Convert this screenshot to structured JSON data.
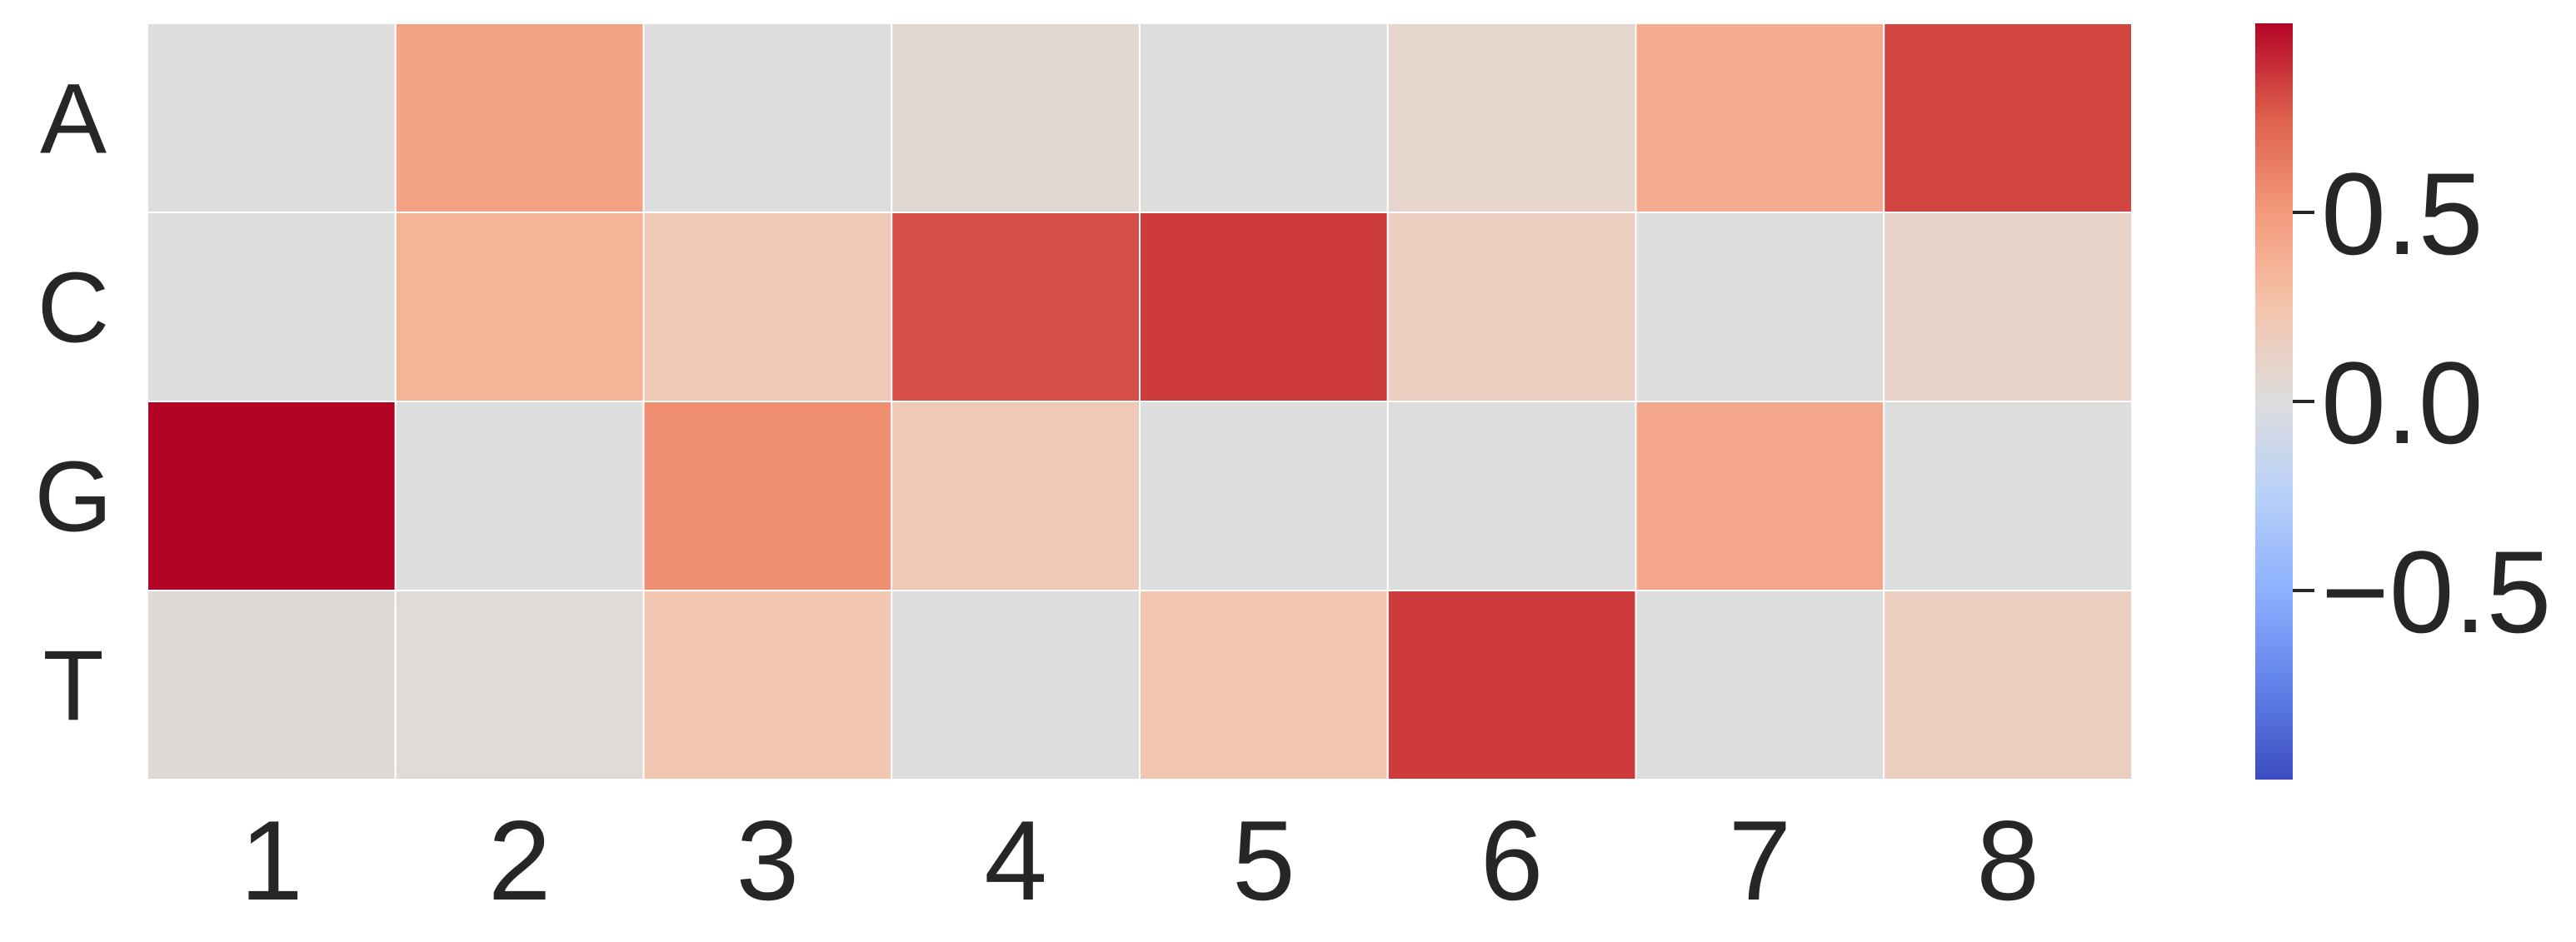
{
  "chart_data": {
    "type": "heatmap",
    "title": "",
    "xlabel": "",
    "ylabel": "",
    "x_categories": [
      "1",
      "2",
      "3",
      "4",
      "5",
      "6",
      "7",
      "8"
    ],
    "y_categories": [
      "A",
      "C",
      "G",
      "T"
    ],
    "values": [
      [
        0.0,
        0.45,
        0.0,
        0.05,
        0.0,
        0.08,
        0.4,
        0.82
      ],
      [
        0.0,
        0.35,
        0.2,
        0.8,
        0.85,
        0.15,
        0.0,
        0.1
      ],
      [
        1.0,
        0.0,
        0.55,
        0.2,
        0.0,
        0.0,
        0.42,
        0.0
      ],
      [
        0.03,
        0.02,
        0.22,
        0.0,
        0.22,
        0.85,
        0.0,
        0.15
      ]
    ],
    "colormap": "coolwarm",
    "vmin": -1.0,
    "vmax": 1.0,
    "colorbar": {
      "ticks": [
        0.5,
        0.0,
        -0.5
      ],
      "tick_labels": [
        "0.5",
        "0.0",
        "−0.5"
      ]
    },
    "grid": false
  },
  "colors": {
    "tick_text": "#262626",
    "cell_border": "#ffffff",
    "cmap_low": "#3b4cc0",
    "cmap_mid": "#dddddd",
    "cmap_high": "#b40426"
  }
}
